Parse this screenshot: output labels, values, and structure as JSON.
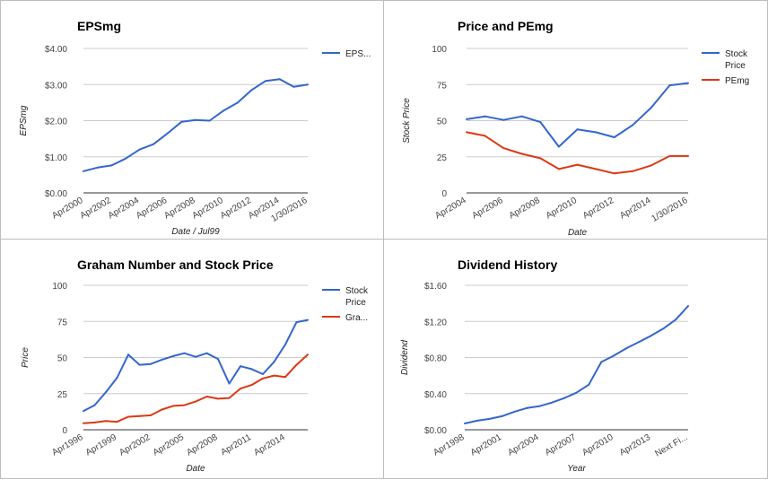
{
  "chart_data": [
    {
      "type": "line",
      "title": "EPSmg",
      "xlabel": "Date / Jul99",
      "ylabel": "EPSmg",
      "ylim": [
        0,
        4
      ],
      "y_ticks": [
        "$0.00",
        "$1.00",
        "$2.00",
        "$3.00",
        "$4.00"
      ],
      "x_tick_labels": [
        "Apr2000",
        "Apr2002",
        "Apr2004",
        "Apr2006",
        "Apr2008",
        "Apr2010",
        "Apr2012",
        "Apr2014",
        "1/30/2016"
      ],
      "x": [
        "Apr2000",
        "Apr2001",
        "Apr2002",
        "Apr2003",
        "Apr2004",
        "Apr2005",
        "Apr2006",
        "Apr2007",
        "Apr2008",
        "Apr2009",
        "Apr2010",
        "Apr2011",
        "Apr2012",
        "Apr2013",
        "Apr2014",
        "Apr2015",
        "1/30/2016"
      ],
      "series": [
        {
          "name": "EPS...",
          "color": "#3366cc",
          "values": [
            0.6,
            0.7,
            0.76,
            0.95,
            1.2,
            1.35,
            1.65,
            1.97,
            2.02,
            2.0,
            2.28,
            2.5,
            2.85,
            3.1,
            3.15,
            2.94,
            3.0
          ]
        }
      ],
      "legend": "right",
      "grid": true
    },
    {
      "type": "line",
      "title": "Price and PEmg",
      "xlabel": "Date",
      "ylabel": "Stock Price",
      "ylim": [
        0,
        100
      ],
      "y_ticks": [
        "0",
        "25",
        "50",
        "75",
        "100"
      ],
      "x_tick_labels": [
        "Apr2004",
        "Apr2006",
        "Apr2008",
        "Apr2010",
        "Apr2012",
        "Apr2014",
        "1/30/2016"
      ],
      "x": [
        "Apr2004",
        "Apr2005",
        "Apr2006",
        "Apr2007",
        "Apr2008",
        "Apr2009",
        "Apr2010",
        "Apr2011",
        "Apr2012",
        "Apr2013",
        "Apr2014",
        "Apr2015",
        "1/30/2016"
      ],
      "series": [
        {
          "name": "Stock Price",
          "color": "#3366cc",
          "values": [
            51,
            53,
            50.5,
            53,
            49,
            32,
            44,
            42,
            38.5,
            47,
            59,
            74.5,
            76
          ]
        },
        {
          "name": "PEmg",
          "color": "#dc3912",
          "values": [
            42,
            39.5,
            31,
            27,
            24,
            16.5,
            19.5,
            16.5,
            13.5,
            15,
            19,
            25.5,
            25.5
          ]
        }
      ],
      "legend": "right",
      "grid": true
    },
    {
      "type": "line",
      "title": "Graham Number and Stock Price",
      "xlabel": "Date",
      "ylabel": "Price",
      "ylim": [
        0,
        100
      ],
      "y_ticks": [
        "0",
        "25",
        "50",
        "75",
        "100"
      ],
      "x_tick_labels": [
        "Apr1996",
        "Apr1999",
        "Apr2002",
        "Apr2005",
        "Apr2008",
        "Apr2011",
        "Apr2014"
      ],
      "x": [
        "Apr1996",
        "Apr1997",
        "Apr1998",
        "Apr1999",
        "Apr2000",
        "Apr2001",
        "Apr2002",
        "Apr2003",
        "Apr2004",
        "Apr2005",
        "Apr2006",
        "Apr2007",
        "Apr2008",
        "Apr2009",
        "Apr2010",
        "Apr2011",
        "Apr2012",
        "Apr2013",
        "Apr2014",
        "Apr2015",
        "1/30/2016"
      ],
      "series": [
        {
          "name": "Stock Price",
          "color": "#3366cc",
          "values": [
            13,
            17,
            26,
            36,
            52,
            45,
            45.5,
            48.5,
            51,
            53,
            50.5,
            53,
            49,
            32,
            44,
            42,
            38.5,
            47,
            59,
            74.5,
            76
          ]
        },
        {
          "name": "Gra...",
          "color": "#dc3912",
          "values": [
            4.5,
            5,
            6,
            5.5,
            9,
            9.5,
            10,
            14,
            16.5,
            17,
            19.5,
            23,
            21.5,
            22,
            28.5,
            31,
            35.5,
            37.5,
            36.5,
            45,
            52
          ]
        }
      ],
      "legend": "right",
      "grid": true
    },
    {
      "type": "line",
      "title": "Dividend History",
      "xlabel": "Year",
      "ylabel": "Dividend",
      "ylim": [
        0,
        1.6
      ],
      "y_ticks": [
        "$0.00",
        "$0.40",
        "$0.80",
        "$1.20",
        "$1.60"
      ],
      "x_tick_labels": [
        "Apr1998",
        "Apr2001",
        "Apr2004",
        "Apr2007",
        "Apr2010",
        "Apr2013",
        "Next Fi..."
      ],
      "x": [
        "Apr1998",
        "Apr1999",
        "Apr2000",
        "Apr2001",
        "Apr2002",
        "Apr2003",
        "Apr2004",
        "Apr2005",
        "Apr2006",
        "Apr2007",
        "Apr2008",
        "Apr2009",
        "Apr2010",
        "Apr2011",
        "Apr2012",
        "Apr2013",
        "Apr2014",
        "Apr2015",
        "Next Fi..."
      ],
      "series": [
        {
          "name": "Dividend",
          "color": "#3366cc",
          "values": [
            0.07,
            0.1,
            0.12,
            0.15,
            0.2,
            0.24,
            0.26,
            0.3,
            0.35,
            0.41,
            0.5,
            0.75,
            0.82,
            0.9,
            0.97,
            1.04,
            1.12,
            1.22,
            1.37
          ]
        }
      ],
      "legend": "none",
      "grid": true
    }
  ]
}
